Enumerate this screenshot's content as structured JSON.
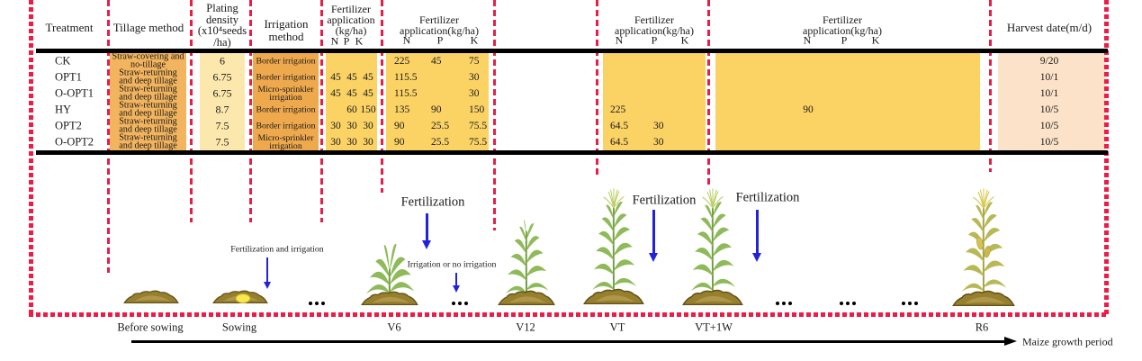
{
  "colors": {
    "red_dash": "#e91e48",
    "red_dash_thick": "#ef1a45",
    "black_line": "#000000",
    "band_tillage": "#f2b45e",
    "band_density": "#fce8ad",
    "band_irrigation": "#efa94d",
    "band_fertilizer": "#fbd365",
    "band_harvest": "#fbe2c8",
    "arrow_blue": "#2222dd",
    "text": "#1a1a1a",
    "mound_fill": "#97802d",
    "mound_dark": "#63511a",
    "seed_fill": "#f7e84e",
    "plant_green": "#8fba5a",
    "plant_green_dark": "#6f9a3e",
    "plant_ripe": "#b9b857",
    "plant_ripe_dark": "#a3a13f"
  },
  "table": {
    "headers": {
      "treatment": "Treatment",
      "tillage": "Tillage method",
      "density_lines": [
        "Plating",
        "density",
        "(x10⁴seeds",
        "/ha)"
      ],
      "irrigation_lines": [
        "Irrigation",
        "method"
      ],
      "fert1_lines": [
        "Fertilizer",
        "application",
        "(kg/ha)"
      ],
      "fert2_lines": [
        "Fertilizer",
        "application(kg/ha)"
      ],
      "fert3_lines": [
        "Fertilizer",
        "application(kg/ha)"
      ],
      "fert4_lines": [
        "Fertilizer",
        "application(kg/ha)"
      ],
      "npk": [
        "N",
        "P",
        "K"
      ],
      "harvest": "Harvest date(m/d)"
    },
    "rows": [
      {
        "treatment": "CK",
        "tillage": [
          "Straw-covering and",
          "no-tillage"
        ],
        "density": "6",
        "irrigation": [
          "Border irrigation"
        ],
        "fert1": [
          "",
          "",
          ""
        ],
        "fert2": [
          "225",
          "45",
          "75"
        ],
        "fert3": [
          "",
          "",
          ""
        ],
        "fert4": [
          "",
          "",
          ""
        ],
        "harvest": "9/20"
      },
      {
        "treatment": "OPT1",
        "tillage": [
          "Straw-returning",
          "and deep tillage"
        ],
        "density": "6.75",
        "irrigation": [
          "Border irrigation"
        ],
        "fert1": [
          "45",
          "45",
          "45"
        ],
        "fert2": [
          "115.5",
          "",
          "30"
        ],
        "fert3": [
          "",
          "",
          ""
        ],
        "fert4": [
          "",
          "",
          ""
        ],
        "harvest": "10/1"
      },
      {
        "treatment": "O-OPT1",
        "tillage": [
          "Straw-returning",
          "and deep tillage"
        ],
        "density": "6.75",
        "irrigation": [
          "Micro-sprinkler",
          "irrigation"
        ],
        "fert1": [
          "45",
          "45",
          "45"
        ],
        "fert2": [
          "115.5",
          "",
          "30"
        ],
        "fert3": [
          "",
          "",
          ""
        ],
        "fert4": [
          "",
          "",
          ""
        ],
        "harvest": "10/1"
      },
      {
        "treatment": "HY",
        "tillage": [
          "Straw-returning",
          "and deep tillage"
        ],
        "density": "8.7",
        "irrigation": [
          "Border irrigation"
        ],
        "fert1": [
          "",
          "60",
          "150"
        ],
        "fert2": [
          "135",
          "90",
          "150"
        ],
        "fert3": [
          "225",
          "",
          ""
        ],
        "fert4": [
          "90",
          "",
          ""
        ],
        "harvest": "10/5"
      },
      {
        "treatment": "OPT2",
        "tillage": [
          "Straw-returning",
          "and deep tillage"
        ],
        "density": "7.5",
        "irrigation": [
          "Border irrigation"
        ],
        "fert1": [
          "30",
          "30",
          "30"
        ],
        "fert2": [
          "90",
          "25.5",
          "75.5"
        ],
        "fert3": [
          "64.5",
          "30",
          ""
        ],
        "fert4": [
          "",
          "",
          ""
        ],
        "harvest": "10/5"
      },
      {
        "treatment": "O-OPT2",
        "tillage": [
          "Straw-returning",
          "and deep tillage"
        ],
        "density": "7.5",
        "irrigation": [
          "Micro-sprinkler",
          "irrigation"
        ],
        "fert1": [
          "30",
          "30",
          "30"
        ],
        "fert2": [
          "90",
          "25.5",
          "75.5"
        ],
        "fert3": [
          "64.5",
          "30",
          ""
        ],
        "fert4": [
          "",
          "",
          ""
        ],
        "harvest": "10/5"
      }
    ]
  },
  "timeline": {
    "stages": [
      {
        "id": "before-sowing",
        "label": "Before sowing"
      },
      {
        "id": "sowing",
        "label": "Sowing"
      },
      {
        "id": "v6",
        "label": "V6"
      },
      {
        "id": "v12",
        "label": "V12"
      },
      {
        "id": "vt",
        "label": "VT"
      },
      {
        "id": "vt1w",
        "label": "VT+1W"
      },
      {
        "id": "r6",
        "label": "R6"
      }
    ],
    "annotations": {
      "sowing_note": "Fertilization and irrigation",
      "v6_fert": "Fertilization",
      "v6_irrig": "Irrigation or no irrigation",
      "vt_fert": "Fertilization",
      "vt1w_fert": "Fertilization"
    },
    "axis_label": "Maize growth period"
  }
}
